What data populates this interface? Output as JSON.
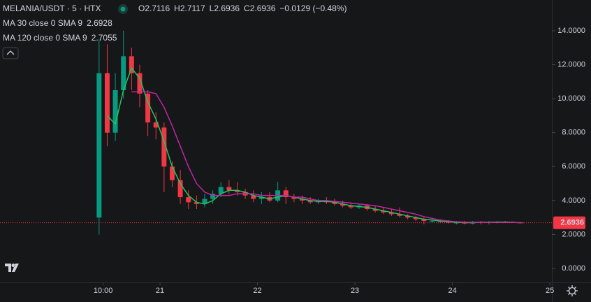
{
  "chart_data": {
    "type": "candlestick",
    "symbol": "MELANIA/USDT · 5 · HTX",
    "ohlc_header": [
      {
        "label": "O",
        "text": "2.7116"
      },
      {
        "label": "H",
        "text": "2.7117"
      },
      {
        "label": "L",
        "text": "2.6936"
      },
      {
        "label": "C",
        "text": "2.6936"
      }
    ],
    "change": "−0.0129 (−0.48%)",
    "x": [
      9,
      11,
      13,
      15,
      17,
      19,
      21,
      23,
      25,
      27,
      29,
      31,
      33,
      35,
      37,
      39,
      41,
      43,
      45,
      47,
      49,
      51,
      53,
      55,
      57,
      59,
      61,
      63,
      65,
      67,
      69,
      71,
      73,
      75,
      77,
      79,
      81,
      83,
      85,
      87,
      89,
      91,
      93,
      95,
      97,
      99,
      101,
      103,
      105,
      107,
      109,
      111,
      113
    ],
    "open": [
      3.0,
      11.5,
      8.0,
      10.5,
      12.5,
      11.5,
      10.3,
      8.6,
      8.3,
      6.0,
      5.2,
      4.2,
      3.9,
      3.8,
      4.1,
      4.4,
      4.8,
      4.6,
      4.5,
      4.3,
      4.1,
      4.2,
      4.0,
      4.6,
      4.2,
      4.1,
      4.0,
      3.9,
      4.0,
      3.9,
      3.8,
      3.7,
      3.6,
      3.7,
      3.5,
      3.4,
      3.3,
      3.2,
      3.1,
      3.0,
      2.9,
      2.8,
      2.8,
      2.75,
      2.7,
      2.7,
      2.65,
      2.75,
      2.7,
      2.72,
      2.75,
      2.72,
      2.71
    ],
    "high": [
      13.5,
      13.2,
      11.5,
      14.0,
      13.0,
      12.0,
      10.5,
      9.2,
      8.6,
      6.3,
      5.8,
      4.6,
      4.3,
      4.4,
      4.6,
      5.1,
      5.2,
      5.1,
      4.7,
      4.6,
      4.5,
      4.5,
      5.1,
      4.8,
      4.4,
      4.3,
      4.2,
      4.1,
      4.2,
      4.1,
      4.0,
      3.9,
      3.8,
      3.8,
      3.7,
      3.6,
      3.5,
      3.6,
      3.2,
      3.1,
      3.0,
      2.9,
      2.9,
      2.85,
      2.8,
      2.8,
      2.8,
      2.8,
      2.8,
      2.8,
      2.8,
      2.78,
      2.7117
    ],
    "low": [
      2.0,
      7.2,
      7.5,
      10.0,
      10.5,
      9.5,
      7.8,
      7.6,
      4.5,
      4.8,
      3.8,
      3.5,
      3.5,
      3.6,
      3.8,
      4.2,
      4.4,
      4.3,
      4.1,
      3.9,
      3.8,
      3.9,
      3.9,
      3.8,
      3.9,
      3.8,
      3.8,
      3.8,
      3.8,
      3.7,
      3.6,
      3.5,
      3.5,
      3.4,
      3.3,
      3.2,
      3.1,
      3.0,
      2.9,
      2.8,
      2.6,
      2.7,
      2.7,
      2.65,
      2.6,
      2.6,
      2.6,
      2.6,
      2.6,
      2.65,
      2.68,
      2.68,
      2.6936
    ],
    "close": [
      11.5,
      8.0,
      10.5,
      12.5,
      11.5,
      10.3,
      8.6,
      8.3,
      6.0,
      5.2,
      4.2,
      3.9,
      3.8,
      4.1,
      4.4,
      4.8,
      4.6,
      4.5,
      4.3,
      4.1,
      4.2,
      4.0,
      4.6,
      4.2,
      4.1,
      4.0,
      3.9,
      4.0,
      3.9,
      3.8,
      3.7,
      3.6,
      3.7,
      3.5,
      3.4,
      3.3,
      3.2,
      3.1,
      3.0,
      2.9,
      2.8,
      2.8,
      2.75,
      2.7,
      2.7,
      2.65,
      2.75,
      2.7,
      2.72,
      2.75,
      2.72,
      2.71,
      2.6936
    ],
    "up_color": "#089981",
    "down_color": "#f23645",
    "series": [
      {
        "name": "MA 30 close 0 SMA 9",
        "color": "#22c55e",
        "values": [
          null,
          9.0,
          8.5,
          10.5,
          11.8,
          11.2,
          9.8,
          8.8,
          7.5,
          6.0,
          5.0,
          4.3,
          3.9,
          3.8,
          4.0,
          4.4,
          4.6,
          4.6,
          4.5,
          4.3,
          4.2,
          4.1,
          4.2,
          4.3,
          4.2,
          4.1,
          4.0,
          3.95,
          3.95,
          3.9,
          3.8,
          3.7,
          3.65,
          3.6,
          3.5,
          3.4,
          3.3,
          3.2,
          3.1,
          3.0,
          2.9,
          2.85,
          2.8,
          2.75,
          2.72,
          2.7,
          2.7,
          2.72,
          2.72,
          2.73,
          2.73,
          2.72,
          2.6928
        ]
      },
      {
        "name": "MA 120 close 0 SMA 9",
        "color": "#c026a3",
        "values": [
          null,
          null,
          null,
          null,
          10.4,
          10.4,
          10.4,
          10.3,
          9.5,
          8.4,
          7.2,
          6.0,
          5.0,
          4.5,
          4.3,
          4.3,
          4.3,
          4.4,
          4.4,
          4.4,
          4.3,
          4.3,
          4.3,
          4.3,
          4.2,
          4.2,
          4.1,
          4.0,
          4.0,
          3.95,
          3.9,
          3.85,
          3.8,
          3.75,
          3.7,
          3.6,
          3.5,
          3.4,
          3.3,
          3.2,
          3.05,
          2.95,
          2.85,
          2.8,
          2.75,
          2.73,
          2.72,
          2.72,
          2.71,
          2.71,
          2.71,
          2.71,
          2.7055
        ]
      }
    ],
    "xlim": [
      -15.4,
      120.5
    ],
    "xticks": [
      {
        "value": 10,
        "label": "10:00"
      },
      {
        "value": 24,
        "label": "21"
      },
      {
        "value": 48,
        "label": "22"
      },
      {
        "value": 72,
        "label": "23"
      },
      {
        "value": 96,
        "label": "24"
      },
      {
        "value": 120,
        "label": "25"
      }
    ],
    "ylim": [
      -0.82,
      15.81
    ],
    "yticks": [
      {
        "value": 0,
        "label": "0.0000"
      },
      {
        "value": 2,
        "label": "2.0000"
      },
      {
        "value": 4,
        "label": "4.0000"
      },
      {
        "value": 6,
        "label": "6.0000"
      },
      {
        "value": 8,
        "label": "8.0000"
      },
      {
        "value": 10,
        "label": "10.0000"
      },
      {
        "value": 12,
        "label": "12.0000"
      },
      {
        "value": 14,
        "label": "14.0000"
      }
    ]
  }
}
